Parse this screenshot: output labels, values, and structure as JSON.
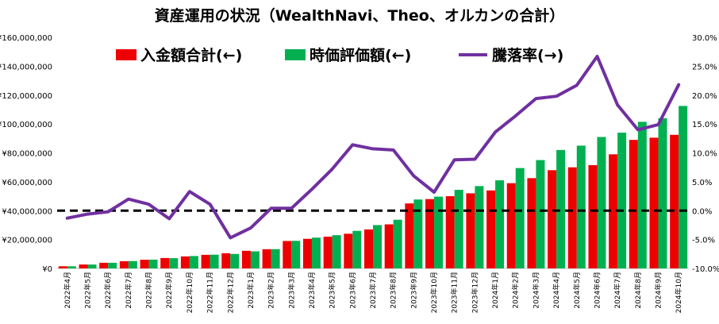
{
  "chart_data": {
    "type": "bar+line",
    "title": "資産運用の状況（WealthNavi、Theo、オルカンの合計）",
    "categories": [
      "2022年4月",
      "2022年5月",
      "2022年6月",
      "2022年7月",
      "2022年8月",
      "2022年9月",
      "2022年10月",
      "2022年11月",
      "2022年12月",
      "2023年1月",
      "2023年2月",
      "2023年3月",
      "2023年4月",
      "2023年5月",
      "2023年6月",
      "2023年7月",
      "2023年8月",
      "2023年9月",
      "2023年10月",
      "2023年11月",
      "2023年12月",
      "2024年1月",
      "2024年2月",
      "2024年3月",
      "2024年4月",
      "2024年5月",
      "2024年6月",
      "2024年7月",
      "2024年8月",
      "2024年9月",
      "2024年10月"
    ],
    "series": [
      {
        "name": "入金額合計(←)",
        "type": "bar",
        "axis": "left",
        "color": "#ee0000",
        "values": [
          1500000,
          2700000,
          3900000,
          5000000,
          6000000,
          7200000,
          8300000,
          9400000,
          10500000,
          12200000,
          13300000,
          19000000,
          20500000,
          22000000,
          24000000,
          27000000,
          30500000,
          45000000,
          48000000,
          50000000,
          52000000,
          54000000,
          59000000,
          62500000,
          68000000,
          70000000,
          71500000,
          79000000,
          89000000,
          90500000,
          92500000
        ]
      },
      {
        "name": "時価評価額(←)",
        "type": "bar",
        "axis": "left",
        "color": "#00b050",
        "values": [
          1480000,
          2680000,
          3900000,
          5100000,
          6080000,
          7100000,
          8580000,
          9500000,
          10000000,
          11830000,
          13350000,
          19100000,
          21300000,
          23000000,
          26000000,
          30000000,
          33700000,
          47700000,
          49700000,
          54400000,
          57000000,
          61000000,
          69500000,
          75000000,
          82000000,
          85000000,
          91000000,
          94000000,
          101500000,
          104000000,
          112500000
        ]
      },
      {
        "name": "騰落率(→)",
        "type": "line",
        "axis": "right",
        "color": "#7030a0",
        "values": [
          -1.3,
          -0.6,
          -0.2,
          2.0,
          1.1,
          -1.4,
          3.3,
          1.1,
          -4.7,
          -3.0,
          0.4,
          0.4,
          3.7,
          7.2,
          11.4,
          10.7,
          10.5,
          6.0,
          3.2,
          8.8,
          8.9,
          13.6,
          16.4,
          19.4,
          19.8,
          21.7,
          26.7,
          18.3,
          14.0,
          14.9,
          21.8
        ]
      }
    ],
    "y_left": {
      "min": 0,
      "max": 160000000,
      "step": 20000000,
      "tick_labels": [
        "¥0",
        "¥20,000,000",
        "¥40,000,000",
        "¥60,000,000",
        "¥80,000,000",
        "¥100,000,000",
        "¥120,000,000",
        "¥140,000,000",
        "¥160,000,000"
      ]
    },
    "y_right": {
      "min": -10,
      "max": 30,
      "step": 5,
      "tick_labels": [
        "-10.0%",
        "-5.0%",
        "0.0%",
        "5.0%",
        "10.0%",
        "15.0%",
        "20.0%",
        "25.0%",
        "30.0%"
      ]
    },
    "reference_line": {
      "axis": "right",
      "value": 0,
      "style": "dashed",
      "color": "#000000"
    },
    "grid": false,
    "legend_position": "top-center"
  }
}
